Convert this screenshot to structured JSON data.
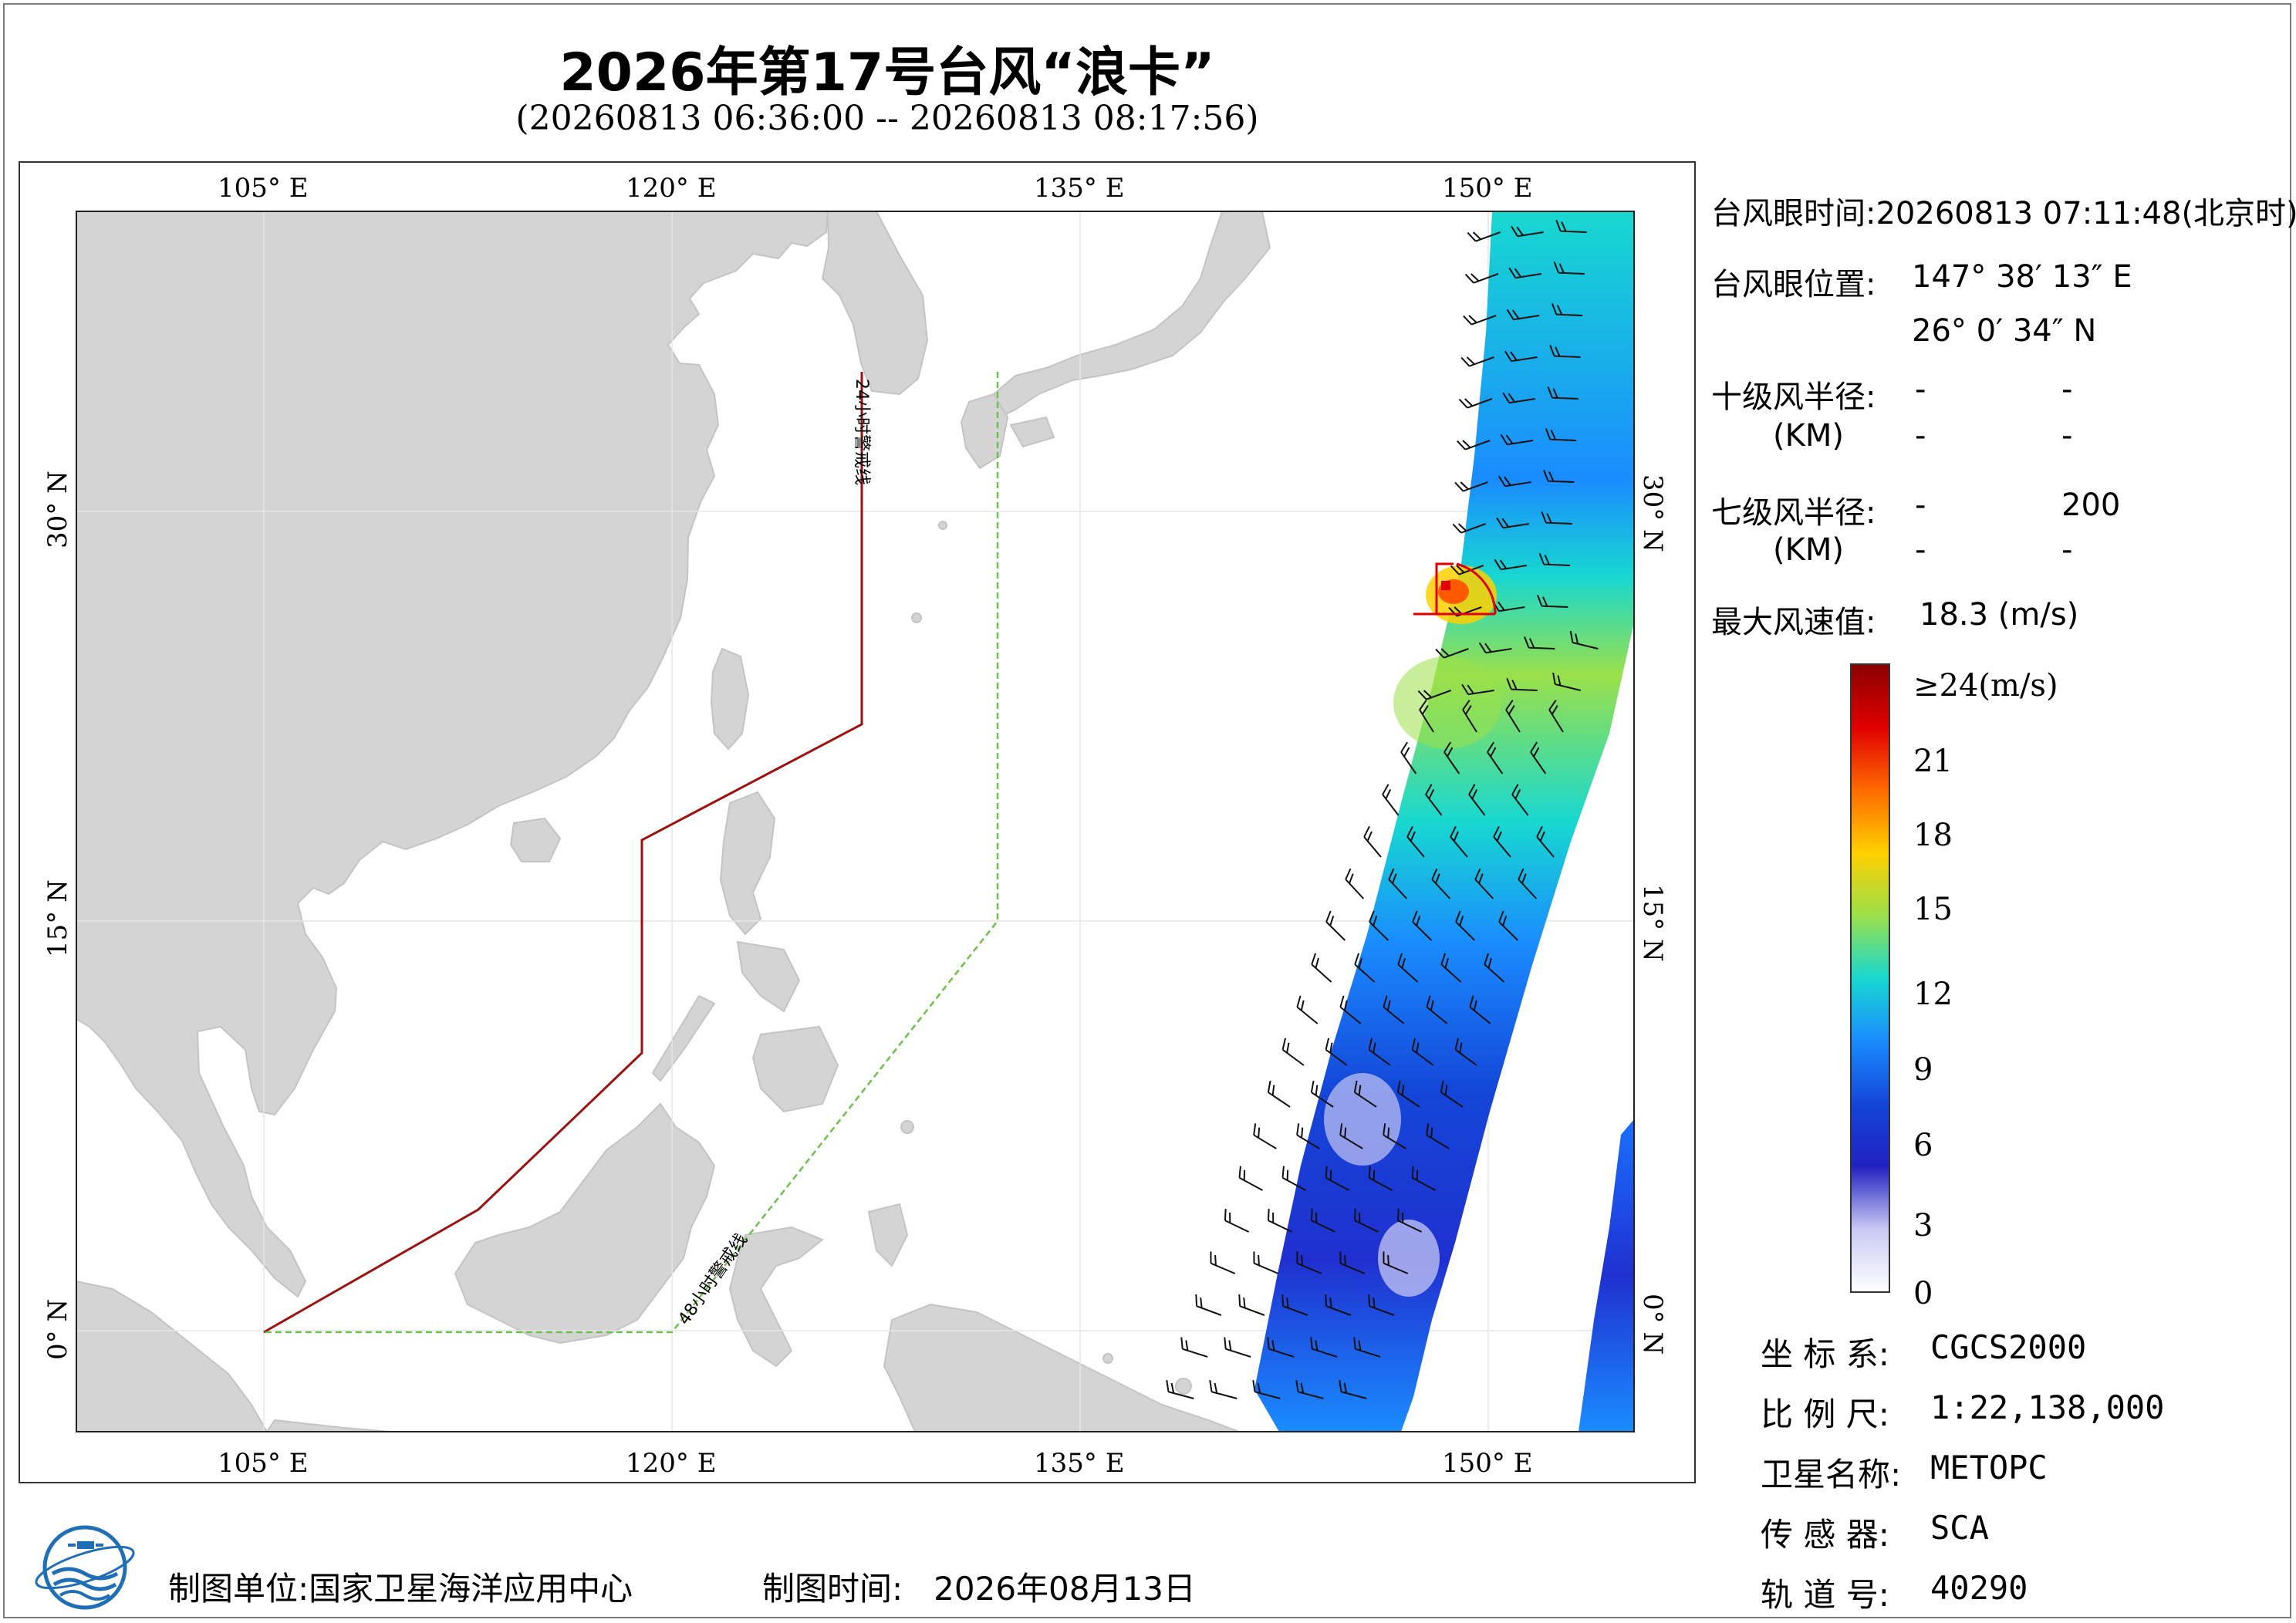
{
  "title": "2026年第17号台风“浪卡”",
  "subtitle": "(20260813 06:36:00 -- 20260813 08:17:56)",
  "map": {
    "lon_labels": [
      "105° E",
      "120° E",
      "135° E",
      "150° E"
    ],
    "lat_labels": [
      "30° N",
      "15° N",
      "0° N"
    ],
    "land_color": "#d4d4d4",
    "ocean_color": "#ffffff",
    "warning_24h": {
      "label": "24小时警戒线",
      "color": "#a01010"
    },
    "warning_48h": {
      "label": "48小时警戒线",
      "color": "#6cc24a"
    },
    "eye_marker_color": "#e00000"
  },
  "info": {
    "eye_time_label": "台风眼时间:",
    "eye_time_value": "20260813 07:11:48(北京时)",
    "eye_pos_label": "台风眼位置:",
    "eye_lon": "147° 38′ 13″ E",
    "eye_lat": "26° 0′ 34″ N",
    "r10_label": "十级风半径:",
    "r10_values": [
      "-",
      "-"
    ],
    "r10_unit": "(KM)",
    "r10_values2": [
      "-",
      "-"
    ],
    "r7_label": "七级风半径:",
    "r7_values": [
      "-",
      "200"
    ],
    "r7_unit": "(KM)",
    "r7_values2": [
      "-",
      "-"
    ],
    "max_wind_label": "最大风速值:",
    "max_wind_value": "18.3 (m/s)"
  },
  "colorbar": {
    "top_label": "≥24(m/s)",
    "ticks": [
      "21",
      "18",
      "15",
      "12",
      "9",
      "6",
      "3",
      "0"
    ],
    "colors": [
      "#8b0000",
      "#e00000",
      "#ff6a00",
      "#ffd000",
      "#9be04a",
      "#18d8d0",
      "#1a8cff",
      "#1446d8",
      "#2020c0",
      "#c8c8f4",
      "#ffffff"
    ]
  },
  "meta": {
    "coord_label": "坐 标 系:",
    "coord_value": "CGCS2000",
    "scale_label": "比 例 尺:",
    "scale_value": "1:22,138,000",
    "sat_label": "卫星名称:",
    "sat_value": "METOPC",
    "sensor_label": "传 感 器:",
    "sensor_value": "SCA",
    "orbit_label": "轨 道 号:",
    "orbit_value": "40290"
  },
  "footer": {
    "unit_label": "制图单位:",
    "unit_value": "国家卫星海洋应用中心",
    "date_label": "制图时间:",
    "date_value": "2026年08月13日"
  }
}
